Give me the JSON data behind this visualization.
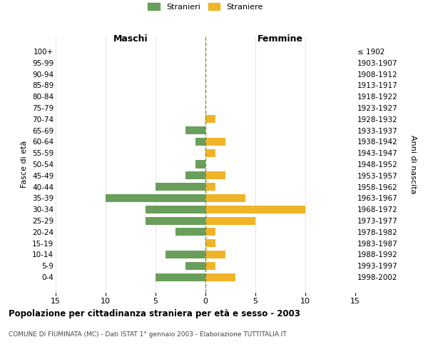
{
  "age_groups": [
    "0-4",
    "5-9",
    "10-14",
    "15-19",
    "20-24",
    "25-29",
    "30-34",
    "35-39",
    "40-44",
    "45-49",
    "50-54",
    "55-59",
    "60-64",
    "65-69",
    "70-74",
    "75-79",
    "80-84",
    "85-89",
    "90-94",
    "95-99",
    "100+"
  ],
  "birth_years": [
    "1998-2002",
    "1993-1997",
    "1988-1992",
    "1983-1987",
    "1978-1982",
    "1973-1977",
    "1968-1972",
    "1963-1967",
    "1958-1962",
    "1953-1957",
    "1948-1952",
    "1943-1947",
    "1938-1942",
    "1933-1937",
    "1928-1932",
    "1923-1927",
    "1918-1922",
    "1913-1917",
    "1908-1912",
    "1903-1907",
    "≤ 1902"
  ],
  "males": [
    5,
    2,
    4,
    0,
    3,
    6,
    6,
    10,
    5,
    2,
    1,
    0,
    1,
    2,
    0,
    0,
    0,
    0,
    0,
    0,
    0
  ],
  "females": [
    3,
    1,
    2,
    1,
    1,
    5,
    10,
    4,
    1,
    2,
    0,
    1,
    2,
    0,
    1,
    0,
    0,
    0,
    0,
    0,
    0
  ],
  "male_color": "#6a9e5b",
  "female_color": "#f0b429",
  "dashed_line_color": "#888844",
  "grid_color": "#cccccc",
  "bg_color": "#ffffff",
  "title": "Popolazione per cittadinanza straniera per età e sesso - 2003",
  "subtitle": "COMUNE DI FIUMINATA (MC) - Dati ISTAT 1° gennaio 2003 - Elaborazione TUTTITALIA.IT",
  "ylabel_left": "Fasce di età",
  "ylabel_right": "Anni di nascita",
  "xlabel_left": "Maschi",
  "xlabel_right": "Femmine",
  "legend_male": "Stranieri",
  "legend_female": "Straniere",
  "xlim": 15
}
